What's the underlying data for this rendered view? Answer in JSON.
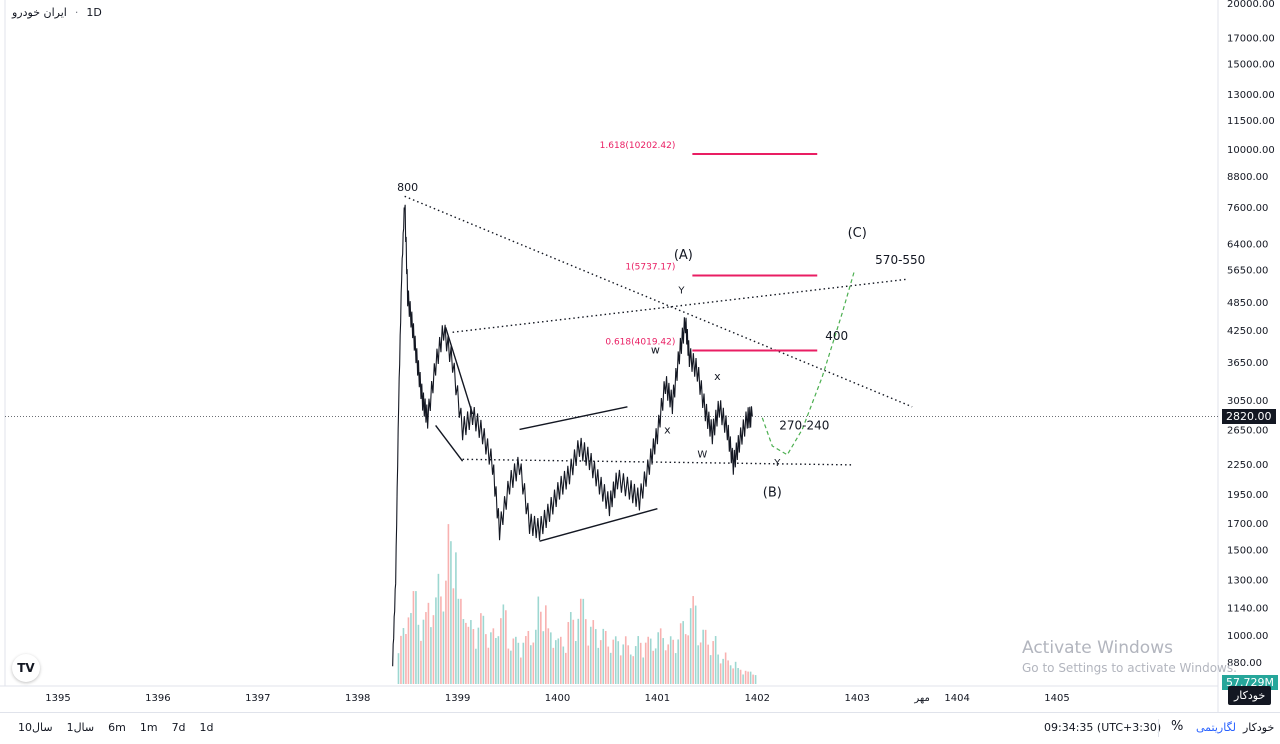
{
  "header": {
    "symbol": "ایران خودرو",
    "interval": "1D"
  },
  "chart_data": {
    "type": "candlestick",
    "yscale": "log",
    "ylim": [
      800,
      20000
    ],
    "y_ticks": [
      "20000.00",
      "17000.00",
      "15000.00",
      "13000.00",
      "11500.00",
      "10000.00",
      "8800.00",
      "7600.00",
      "6400.00",
      "5650.00",
      "4850.00",
      "4250.00",
      "3650.00",
      "3050.00",
      "2650.00",
      "2250.00",
      "1950.00",
      "1700.00",
      "1500.00",
      "1300.00",
      "1140.00",
      "1000.00",
      "880.00"
    ],
    "x_ticks": [
      "1395",
      "1396",
      "1397",
      "1398",
      "1399",
      "1400",
      "1401",
      "1402",
      "1403",
      "1404",
      "1405",
      "مهر"
    ],
    "last_price": "2820.00",
    "volume_label": "57.729M",
    "price_path": [
      [
        1398.35,
        880
      ],
      [
        1398.38,
        1300
      ],
      [
        1398.41,
        3000
      ],
      [
        1398.44,
        5500
      ],
      [
        1398.47,
        7900
      ],
      [
        1398.5,
        5000
      ],
      [
        1398.55,
        4300
      ],
      [
        1398.6,
        3600
      ],
      [
        1398.65,
        3050
      ],
      [
        1398.7,
        2800
      ],
      [
        1398.78,
        3600
      ],
      [
        1398.86,
        4250
      ],
      [
        1398.95,
        3650
      ],
      [
        1399.05,
        2650
      ],
      [
        1399.15,
        2850
      ],
      [
        1399.25,
        2600
      ],
      [
        1399.35,
        2250
      ],
      [
        1399.42,
        1650
      ],
      [
        1399.52,
        2050
      ],
      [
        1399.62,
        2250
      ],
      [
        1399.72,
        1700
      ],
      [
        1399.82,
        1650
      ],
      [
        1399.92,
        1800
      ],
      [
        1400.02,
        2000
      ],
      [
        1400.12,
        2150
      ],
      [
        1400.22,
        2450
      ],
      [
        1400.32,
        2300
      ],
      [
        1400.42,
        2050
      ],
      [
        1400.52,
        1850
      ],
      [
        1400.6,
        2100
      ],
      [
        1400.72,
        2000
      ],
      [
        1400.82,
        1900
      ],
      [
        1400.92,
        2250
      ],
      [
        1401.0,
        2600
      ],
      [
        1401.08,
        3300
      ],
      [
        1401.15,
        3000
      ],
      [
        1401.22,
        3800
      ],
      [
        1401.28,
        4400
      ],
      [
        1401.32,
        3750
      ],
      [
        1401.4,
        3500
      ],
      [
        1401.48,
        2900
      ],
      [
        1401.55,
        2600
      ],
      [
        1401.62,
        2950
      ],
      [
        1401.7,
        2650
      ],
      [
        1401.76,
        2250
      ],
      [
        1401.82,
        2500
      ],
      [
        1401.9,
        2800
      ],
      [
        1401.95,
        2820
      ]
    ],
    "volume": [
      [
        1398.4,
        0.35
      ],
      [
        1398.5,
        0.6
      ],
      [
        1398.6,
        0.45
      ],
      [
        1398.7,
        0.55
      ],
      [
        1398.8,
        0.7
      ],
      [
        1398.9,
        1.0
      ],
      [
        1399.0,
        0.55
      ],
      [
        1399.1,
        0.4
      ],
      [
        1399.2,
        0.45
      ],
      [
        1399.3,
        0.35
      ],
      [
        1399.4,
        0.5
      ],
      [
        1399.5,
        0.3
      ],
      [
        1399.6,
        0.3
      ],
      [
        1399.7,
        0.35
      ],
      [
        1399.8,
        0.55
      ],
      [
        1399.9,
        0.35
      ],
      [
        1400.0,
        0.3
      ],
      [
        1400.1,
        0.45
      ],
      [
        1400.2,
        0.55
      ],
      [
        1400.3,
        0.4
      ],
      [
        1400.4,
        0.35
      ],
      [
        1400.5,
        0.3
      ],
      [
        1400.6,
        0.3
      ],
      [
        1400.7,
        0.25
      ],
      [
        1400.8,
        0.3
      ],
      [
        1400.9,
        0.3
      ],
      [
        1401.0,
        0.35
      ],
      [
        1401.1,
        0.3
      ],
      [
        1401.2,
        0.4
      ],
      [
        1401.3,
        0.55
      ],
      [
        1401.4,
        0.35
      ],
      [
        1401.5,
        0.3
      ],
      [
        1401.6,
        0.2
      ],
      [
        1401.7,
        0.15
      ],
      [
        1401.8,
        0.1
      ],
      [
        1401.9,
        0.08
      ]
    ],
    "fib_levels": [
      {
        "label": "1.618(10202.42)",
        "value": 10202.42
      },
      {
        "label": "1(5737.17)",
        "value": 5737.17
      },
      {
        "label": "0.618(4019.42)",
        "value": 4019.42
      }
    ],
    "annotations": {
      "peak": "800",
      "wave_a": "(A)",
      "wave_b": "(B)",
      "wave_c": "(C)",
      "w1": "w",
      "x1": "x",
      "y1": "Y",
      "x2": "x",
      "w2": "W",
      "y2": "Y",
      "target_low": "270-240",
      "target_mid": "400",
      "target_high": "570-550"
    }
  },
  "toolbar": {
    "ranges": [
      "10سال",
      "1سال",
      "6m",
      "1m",
      "7d",
      "1d"
    ],
    "time": "09:34:35 (UTC+3:30)",
    "percent": "%",
    "log": "لگاریتمی",
    "auto": "خودکار"
  },
  "watermark": {
    "line1": "Activate Windows",
    "line2": "Go to Settings to activate Windows."
  },
  "colors": {
    "fib": "#e91e63",
    "up_vol": "#26a69a",
    "down_vol": "#ef5350",
    "projection": "#4caf50"
  },
  "logo": "TV"
}
